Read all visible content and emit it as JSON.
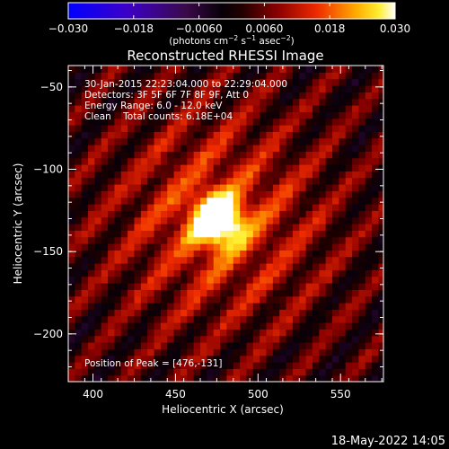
{
  "chart_data": {
    "type": "heatmap",
    "title": "Reconstructed RHESSI Image",
    "xlabel": "Heliocentric X (arcsec)",
    "ylabel": "Heliocentric Y (arcsec)",
    "xlim": [
      385,
      576
    ],
    "ylim": [
      -229,
      -37
    ],
    "x_ticks": [
      400,
      450,
      500,
      550
    ],
    "y_ticks": [
      -50,
      -100,
      -150,
      -200
    ],
    "colorbar": {
      "range": [
        -0.03,
        0.03
      ],
      "ticks": [
        "−0.030",
        "−0.018",
        "−0.0060",
        "0.0060",
        "0.018",
        "0.030"
      ],
      "label_main": "(photons cm",
      "label_exp1": "−2",
      "label_mid": " s",
      "label_exp2": "−1",
      "label_end": " asec",
      "label_exp3": "−2",
      "label_close": ")",
      "colormap": "blue-purple-black-red-orange-yellow-white"
    },
    "annotations": {
      "time": "30-Jan-2015 22:23:04.000 to 22:29:04.000",
      "detectors": "Detectors: 3F 5F 6F 7F 8F 9F, Att 0",
      "energy": "Energy Range: 6.0 - 12.0 keV",
      "method": "Clean    Total counts: 6.18E+04",
      "peak": "Position of Peak = [476,-131]"
    },
    "peak": {
      "x": 476,
      "y": -131,
      "value": 0.03
    },
    "stripe_orientation": "diagonal, rising to the upper-right",
    "footer": "18-May-2022 14:05"
  }
}
